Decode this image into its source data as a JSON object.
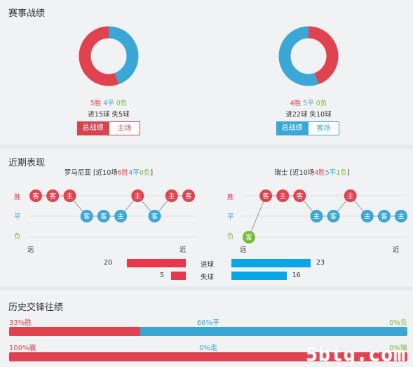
{
  "sections": {
    "record_title": "赛事战绩",
    "recent_title": "近期表现",
    "history_title": "历史交锋往绩"
  },
  "left_team": {
    "record": {
      "win": "5胜",
      "draw": "4平",
      "loss": "0负",
      "goals": "进15球",
      "conceded": "失5球"
    },
    "donut": {
      "win": 5,
      "draw": 4,
      "loss": 0
    },
    "tab_all": "总战绩",
    "tab_venue": "主场",
    "recent_heading": {
      "name": "罗马尼亚",
      "prefix": "[近10场",
      "win": "6胜",
      "draw": "4平",
      "loss": "0负",
      "suffix": "]"
    },
    "recent": [
      {
        "result": "W",
        "venue": "客"
      },
      {
        "result": "W",
        "venue": "客"
      },
      {
        "result": "W",
        "venue": "主"
      },
      {
        "result": "D",
        "venue": "客"
      },
      {
        "result": "D",
        "venue": "客"
      },
      {
        "result": "D",
        "venue": "主"
      },
      {
        "result": "W",
        "venue": "主"
      },
      {
        "result": "D",
        "venue": "客"
      },
      {
        "result": "W",
        "venue": "主"
      },
      {
        "result": "W",
        "venue": "客"
      }
    ],
    "goals_for": 20,
    "goals_against": 5
  },
  "right_team": {
    "record": {
      "win": "4胜",
      "draw": "5平",
      "loss": "0负",
      "goals": "进22球",
      "conceded": "失10球"
    },
    "donut": {
      "win": 4,
      "draw": 5,
      "loss": 0
    },
    "tab_all": "总战绩",
    "tab_venue": "客场",
    "recent_heading": {
      "name": "瑞士",
      "prefix": "[近10场",
      "win": "4胜",
      "draw": "5平",
      "loss": "1负",
      "suffix": "]"
    },
    "recent": [
      {
        "result": "L",
        "venue": "客"
      },
      {
        "result": "W",
        "venue": "客"
      },
      {
        "result": "W",
        "venue": "主"
      },
      {
        "result": "W",
        "venue": "客"
      },
      {
        "result": "D",
        "venue": "主"
      },
      {
        "result": "D",
        "venue": "客"
      },
      {
        "result": "W",
        "venue": "主"
      },
      {
        "result": "D",
        "venue": "主"
      },
      {
        "result": "D",
        "venue": "客"
      },
      {
        "result": "D",
        "venue": "主"
      }
    ],
    "goals_for": 23,
    "goals_against": 16
  },
  "axis": {
    "win": "胜",
    "draw": "平",
    "loss": "负",
    "far": "远",
    "near": "近"
  },
  "mid_labels": {
    "goals": "进球",
    "conceded": "失球"
  },
  "history": {
    "row1": {
      "left": "33%胜",
      "mid": "66%平",
      "right": "0%负",
      "left_pct": 33,
      "mid_pct": 66,
      "right_pct": 0
    },
    "row2": {
      "left": "100%赢",
      "mid": "0%走",
      "right": "0%输",
      "left_pct": 100,
      "mid_pct": 0,
      "right_pct": 0
    }
  },
  "watermark": "5btq.com",
  "colors": {
    "red": "#e0434f",
    "blue": "#3aa7d6",
    "green": "#79b93b",
    "bar_red": "#e8364a",
    "bar_blue": "#0aa6e8"
  }
}
